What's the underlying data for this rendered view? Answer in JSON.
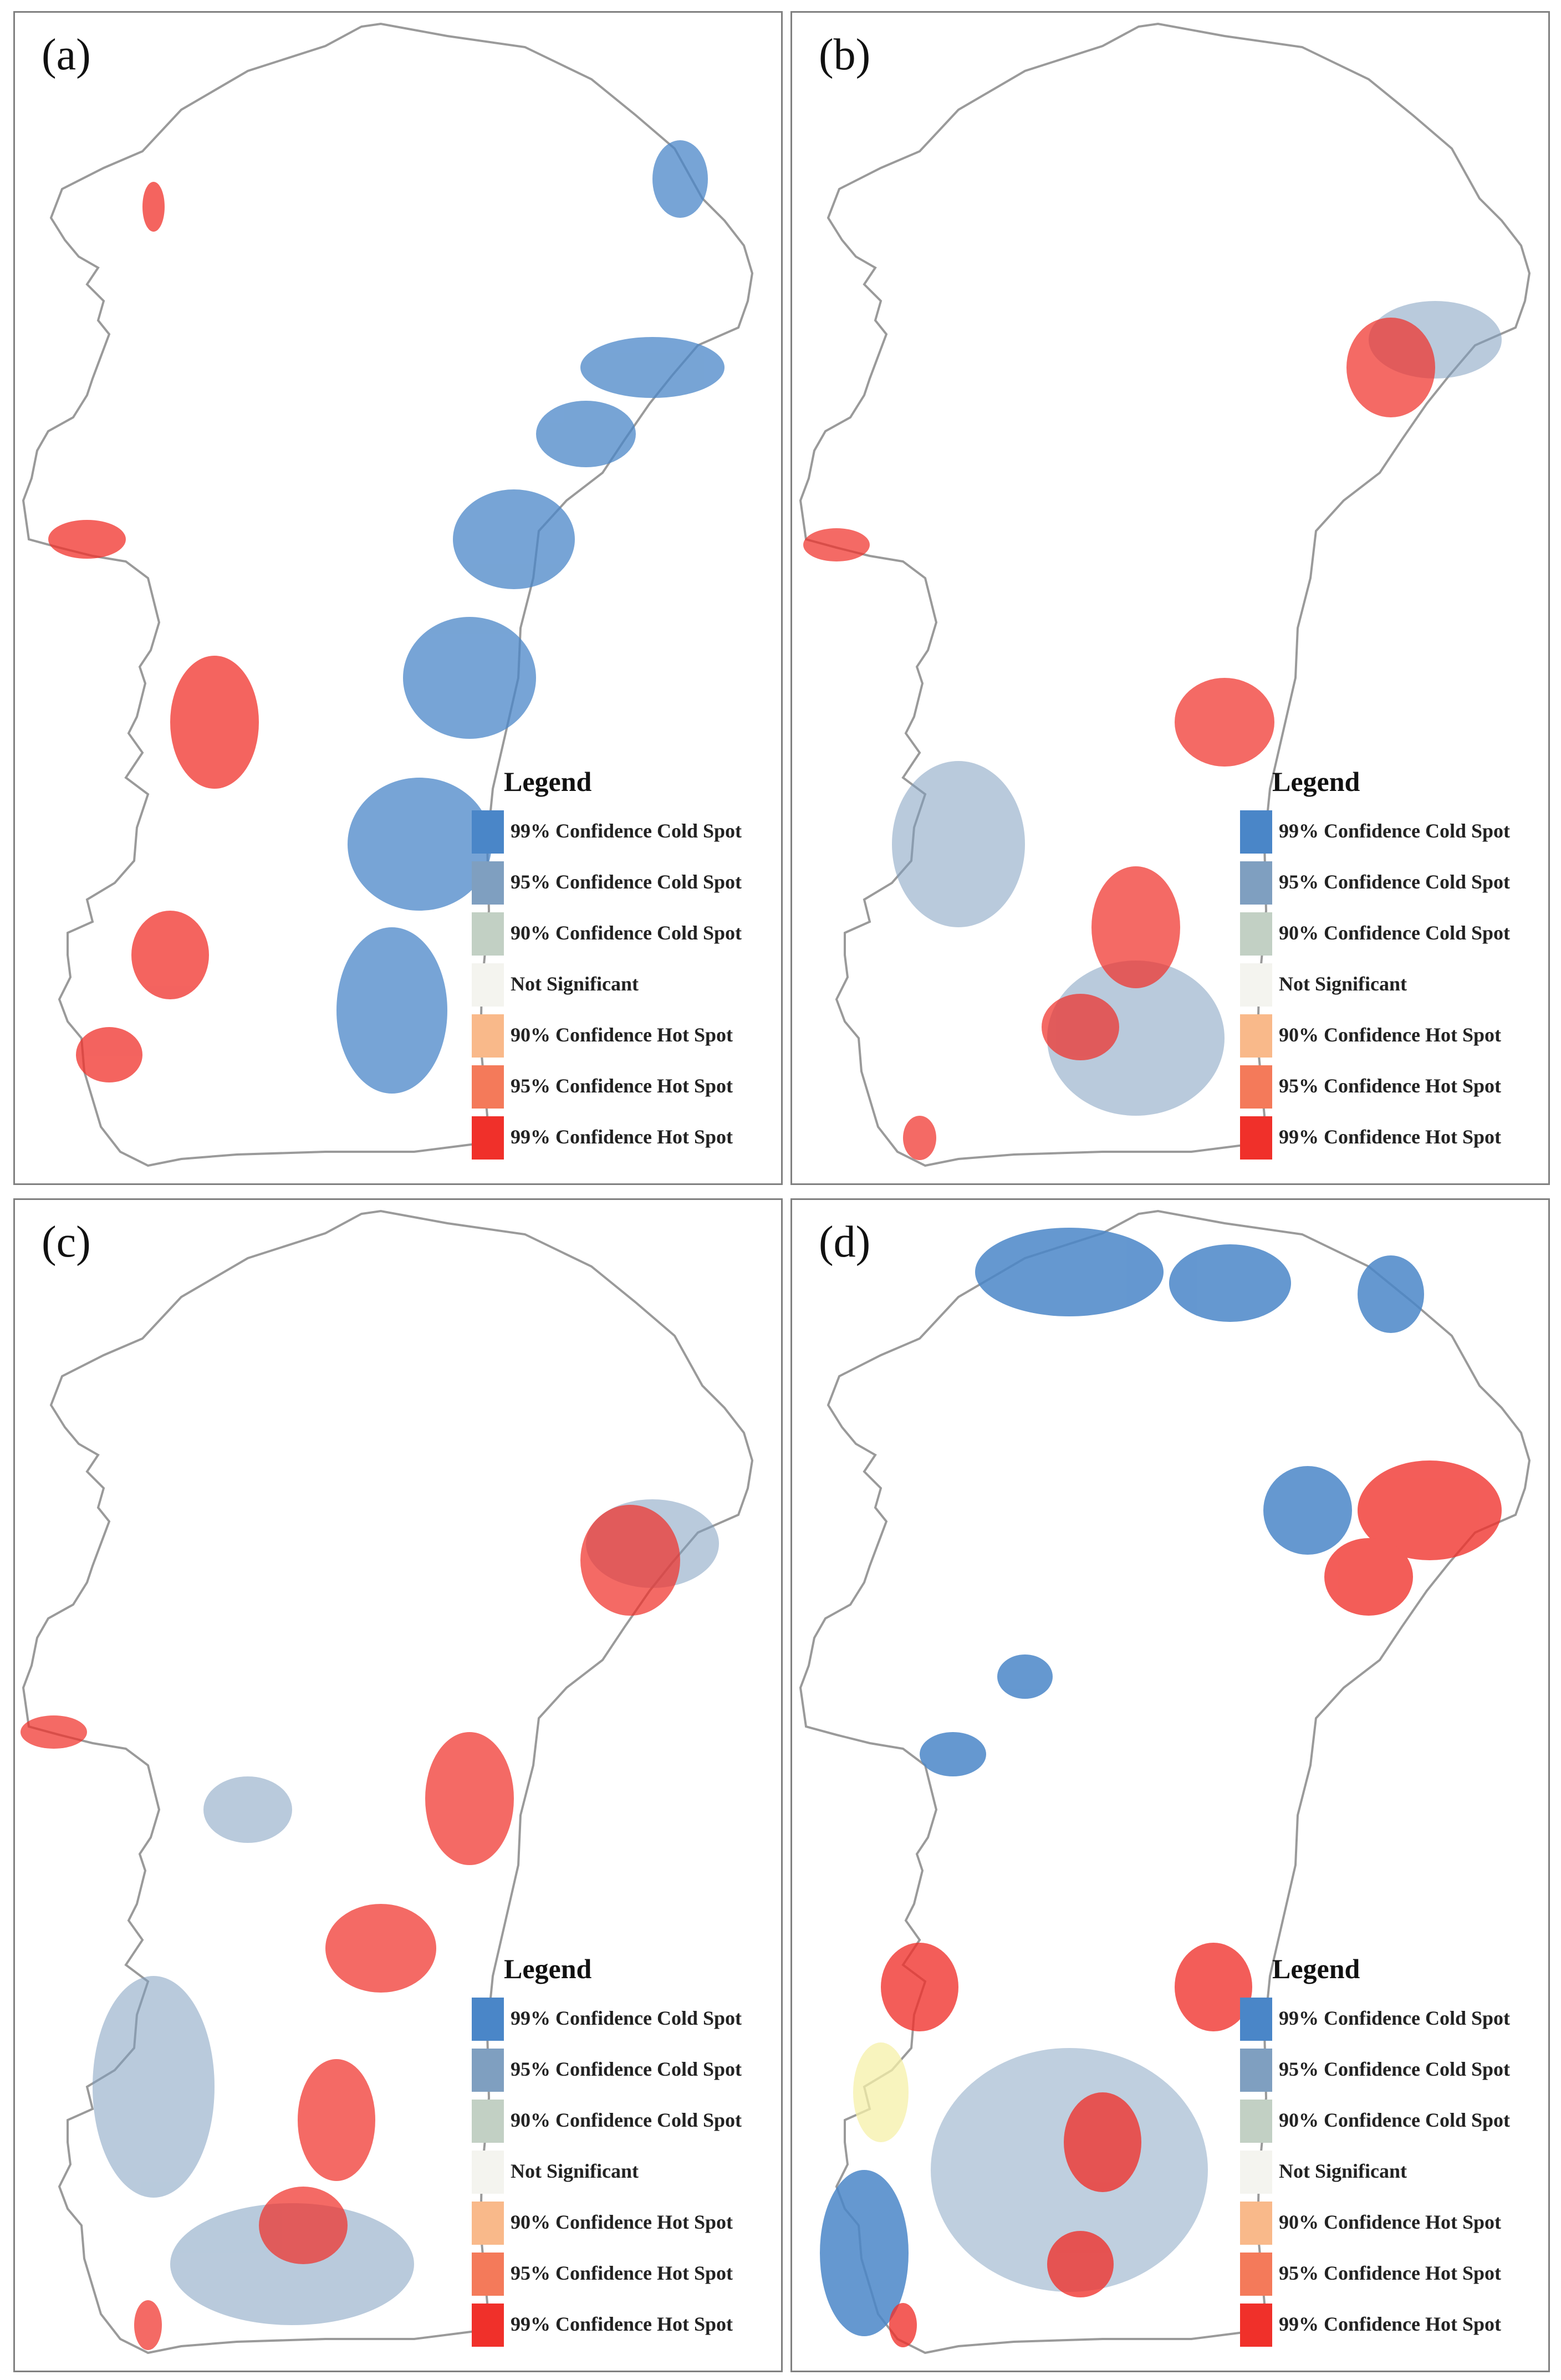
{
  "figure": {
    "legend_title": "Legend",
    "legend_items": [
      {
        "label": "99% Confidence Cold Spot",
        "color": "#4a86c8"
      },
      {
        "label": "95% Confidence Cold Spot",
        "color": "#7f9fc0"
      },
      {
        "label": "90% Confidence Cold Spot",
        "color": "#c2d0c4"
      },
      {
        "label": "Not Significant",
        "color": "#f4f4ef"
      },
      {
        "label": "90% Confidence Hot Spot",
        "color": "#f9b98a"
      },
      {
        "label": "95% Confidence Hot Spot",
        "color": "#f47a5a"
      },
      {
        "label": "99% Confidence Hot Spot",
        "color": "#f0302a"
      }
    ],
    "panels": [
      {
        "id": "a",
        "label": "(a)"
      },
      {
        "id": "b",
        "label": "(b)"
      },
      {
        "id": "c",
        "label": "(c)"
      },
      {
        "id": "d",
        "label": "(d)"
      }
    ]
  }
}
